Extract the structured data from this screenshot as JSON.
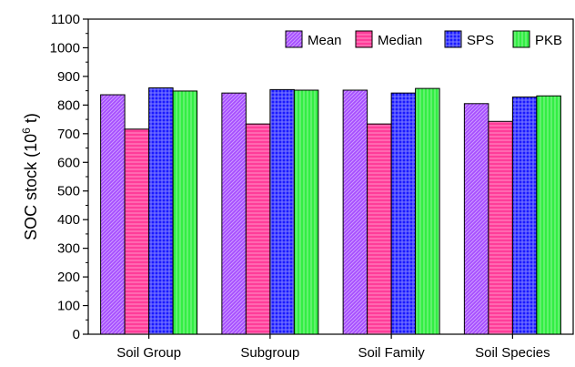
{
  "chart_data": {
    "type": "bar",
    "title": "",
    "xlabel": "",
    "ylabel": "SOC stock (10",
    "ylabel_superscript": "6",
    "ylabel_suffix": " t)",
    "ylim": [
      0,
      1100
    ],
    "yticks": [
      0,
      100,
      200,
      300,
      400,
      500,
      600,
      700,
      800,
      900,
      1000,
      1100
    ],
    "categories": [
      "Soil Group",
      "Subgroup",
      "Soil Family",
      "Soil Species"
    ],
    "series": [
      {
        "name": "Mean",
        "color": "#a64dff",
        "hatch": "diagonal",
        "values": [
          836,
          842,
          852,
          805
        ]
      },
      {
        "name": "Median",
        "color": "#ff3d99",
        "hatch": "horizontal",
        "values": [
          716,
          734,
          734,
          743
        ]
      },
      {
        "name": "SPS",
        "color": "#1a1aff",
        "hatch": "crosshatch",
        "values": [
          860,
          854,
          842,
          828
        ]
      },
      {
        "name": "PKB",
        "color": "#33ee44",
        "hatch": "vertical",
        "values": [
          849,
          852,
          858,
          832
        ]
      }
    ],
    "grid": false,
    "legend": "top-right"
  }
}
